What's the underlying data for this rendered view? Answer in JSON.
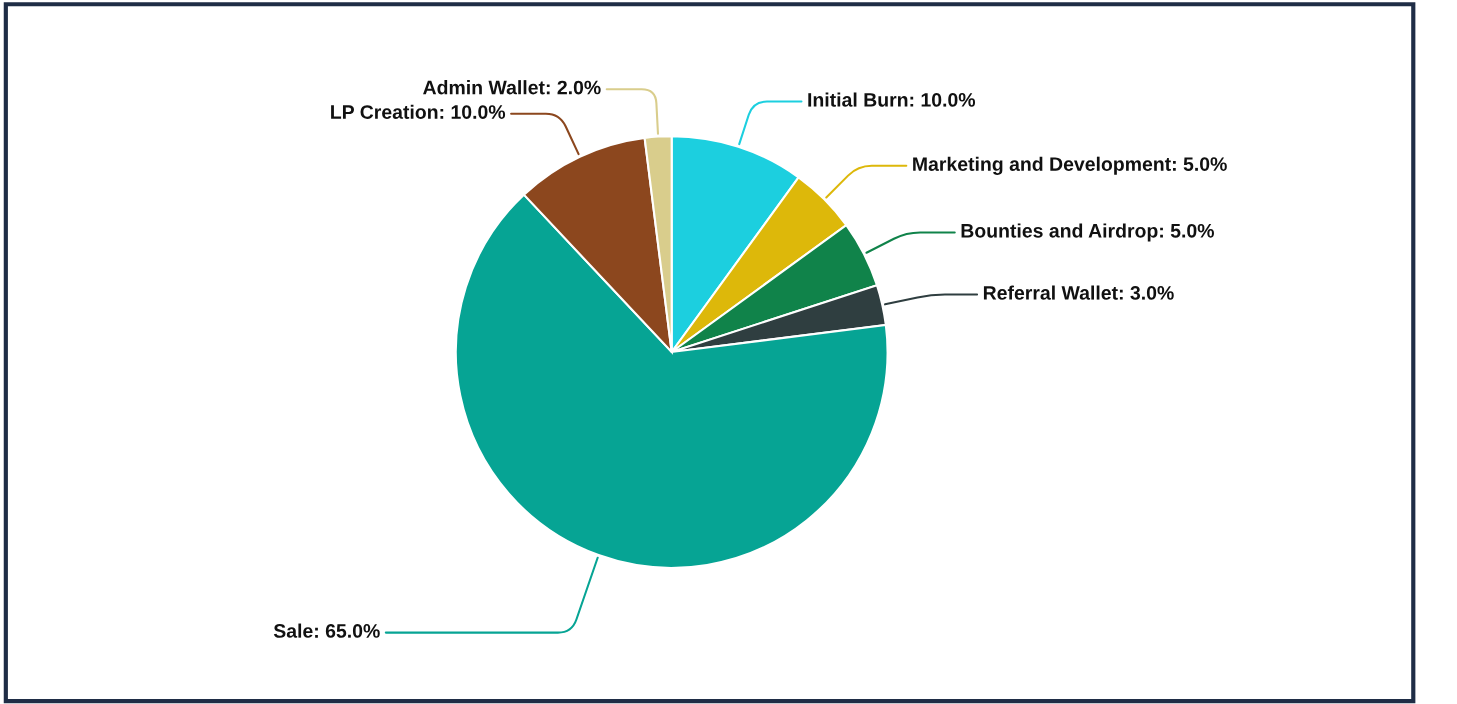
{
  "chart_data": {
    "type": "pie",
    "categories": [
      "Initial Burn: 10.0%",
      "Marketing and Development: 5.0%",
      "Bounties and Airdrop: 5.0%",
      "Referral Wallet: 3.0%",
      "Sale: 65.0%",
      "LP Creation: 10.0%",
      "Admin Wallet: 2.0%"
    ],
    "values": [
      10,
      5,
      5,
      3,
      65,
      10,
      2
    ],
    "colors": [
      "#1ccfdf",
      "#ddb80a",
      "#10834a",
      "#2f3e40",
      "#06a494",
      "#8c471e",
      "#d9cd8c"
    ],
    "legend": false
  }
}
